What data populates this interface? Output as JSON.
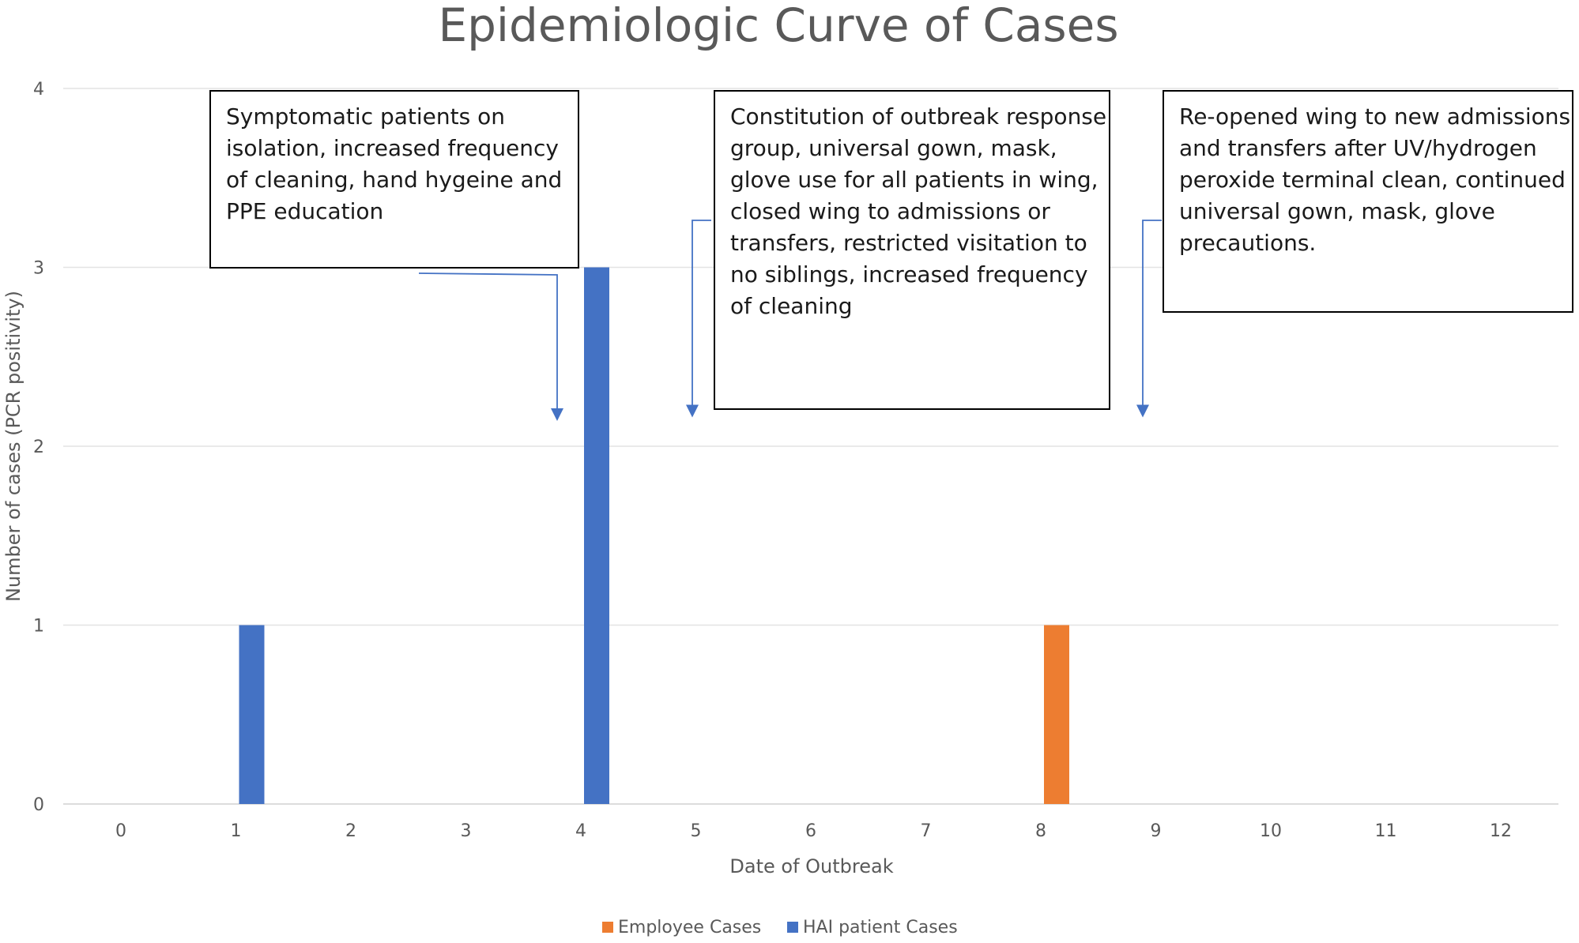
{
  "chart_data": {
    "type": "bar",
    "title": "Epidemiologic Curve of Cases",
    "xlabel": "Date  of Outbreak",
    "ylabel": "Number of cases (PCR positivity)",
    "categories": [
      "0",
      "1",
      "2",
      "3",
      "4",
      "5",
      "6",
      "7",
      "8",
      "9",
      "10",
      "11",
      "12"
    ],
    "ylim": [
      0,
      4
    ],
    "yticks": [
      "0",
      "1",
      "2",
      "3",
      "4"
    ],
    "grid": true,
    "legend_position": "bottom",
    "series": [
      {
        "name": "Employee Cases",
        "color": "#ED7D31",
        "values": [
          0,
          0,
          0,
          0,
          0,
          0,
          0,
          0,
          1,
          0,
          0,
          0,
          0
        ]
      },
      {
        "name": "HAI patient  Cases",
        "color": "#4472C4",
        "values": [
          0,
          1,
          0,
          0,
          3,
          0,
          0,
          0,
          0,
          0,
          0,
          0,
          0
        ]
      }
    ],
    "annotations": [
      {
        "lines": [
          "Symptomatic patients on",
          "isolation, increased frequency",
          "of cleaning, hand hygeine and",
          "PPE education"
        ],
        "target_x": 3.85,
        "target_y": 2.15
      },
      {
        "lines": [
          "Constitution of outbreak response",
          "group, universal gown, mask,",
          "glove use for all patients in wing,",
          "closed wing to admissions or",
          "transfers, restricted visitation to",
          "no siblings, increased frequency",
          "of cleaning"
        ],
        "target_x": 5.0,
        "target_y": 2.17
      },
      {
        "lines": [
          "Re-opened wing to new admissions",
          "and transfers after UV/hydrogen",
          "peroxide terminal clean, continued",
          "universal gown, mask, glove",
          "precautions."
        ],
        "target_x": 8.9,
        "target_y": 2.17
      }
    ]
  }
}
